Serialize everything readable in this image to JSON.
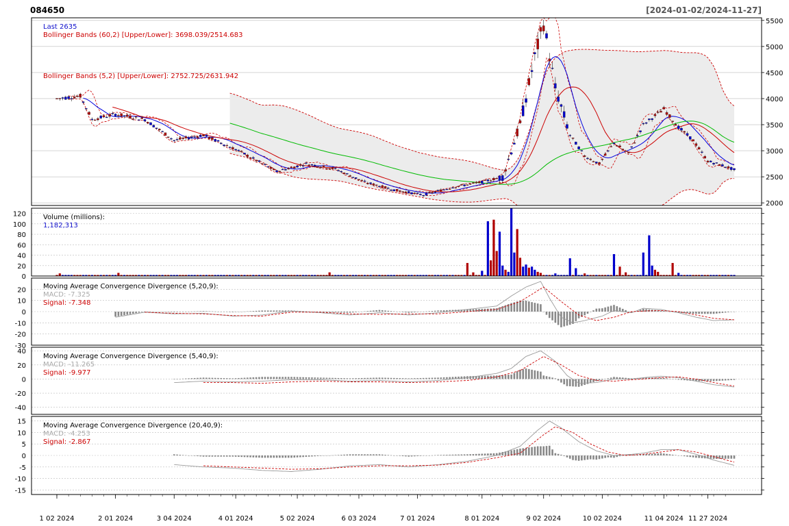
{
  "header": {
    "ticker": "084650",
    "date_range": "[2024-01-02/2024-11-27]"
  },
  "colors": {
    "up": "#0000cc",
    "down": "#b00000",
    "bb_fill": "#ececec",
    "bb_line": "#cc0000",
    "ma_short": "#0000dd",
    "ma_mid": "#cc0000",
    "ma_long": "#00bb00",
    "macd": "#999999",
    "signal": "#cc0000",
    "hist": "#888888",
    "grid": "#bbbbbb"
  },
  "chart_data": [
    {
      "type": "candlestick",
      "panel": "price",
      "legend": {
        "last": "Last 2635",
        "bb60": "Bollinger Bands (60,2) [Upper/Lower]: 3698.039/2514.683",
        "bb5": "Bollinger Bands (5,2) [Upper/Lower]: 2752.725/2631.942"
      },
      "ylim": [
        1950,
        5550
      ],
      "y_ticks": [
        2000,
        2500,
        3000,
        3500,
        4000,
        4500,
        5000,
        5500
      ],
      "x_ticks": [
        "1 02 2024",
        "2 01 2024",
        "3 04 2024",
        "4 01 2024",
        "5 02 2024",
        "6 03 2024",
        "7 01 2024",
        "8 01 2024",
        "9 02 2024",
        "10 02 2024",
        "11 04 2024",
        "11 27 2024"
      ],
      "x_tick_index": [
        0,
        20,
        40,
        61,
        82,
        103,
        123,
        145,
        166,
        186,
        207,
        222
      ],
      "close_keypoints": [
        [
          0,
          4000
        ],
        [
          8,
          4050
        ],
        [
          12,
          3600
        ],
        [
          20,
          3700
        ],
        [
          30,
          3600
        ],
        [
          40,
          3200
        ],
        [
          50,
          3300
        ],
        [
          62,
          3000
        ],
        [
          75,
          2600
        ],
        [
          85,
          2750
        ],
        [
          95,
          2650
        ],
        [
          105,
          2400
        ],
        [
          115,
          2250
        ],
        [
          125,
          2150
        ],
        [
          135,
          2300
        ],
        [
          145,
          2400
        ],
        [
          152,
          2500
        ],
        [
          158,
          3500
        ],
        [
          163,
          4800
        ],
        [
          166,
          5450
        ],
        [
          170,
          4200
        ],
        [
          175,
          3300
        ],
        [
          180,
          2900
        ],
        [
          185,
          2750
        ],
        [
          190,
          3150
        ],
        [
          195,
          2950
        ],
        [
          200,
          3500
        ],
        [
          207,
          3800
        ],
        [
          212,
          3450
        ],
        [
          217,
          3200
        ],
        [
          222,
          2800
        ],
        [
          228,
          2700
        ],
        [
          231,
          2635
        ]
      ],
      "series_names": [
        "BB(60,2) upper",
        "BB(60,2) lower",
        "BB(5,2) upper",
        "BB(5,2) lower",
        "MA short",
        "MA mid",
        "MA long"
      ]
    },
    {
      "type": "bar",
      "panel": "volume",
      "title": "Volume (millions):",
      "last_value": "1,182,313",
      "ylim": [
        0,
        130
      ],
      "y_ticks": [
        0,
        20,
        40,
        60,
        80,
        100,
        120
      ],
      "baseline": 2,
      "spikes": [
        [
          1,
          5
        ],
        [
          21,
          6
        ],
        [
          93,
          7
        ],
        [
          140,
          25
        ],
        [
          142,
          7
        ],
        [
          145,
          10
        ],
        [
          147,
          105
        ],
        [
          148,
          30
        ],
        [
          149,
          108
        ],
        [
          150,
          48
        ],
        [
          151,
          85
        ],
        [
          152,
          20
        ],
        [
          153,
          12
        ],
        [
          154,
          8
        ],
        [
          155,
          135
        ],
        [
          156,
          45
        ],
        [
          157,
          90
        ],
        [
          158,
          35
        ],
        [
          159,
          18
        ],
        [
          160,
          22
        ],
        [
          161,
          16
        ],
        [
          162,
          18
        ],
        [
          163,
          12
        ],
        [
          164,
          8
        ],
        [
          165,
          6
        ],
        [
          170,
          5
        ],
        [
          175,
          34
        ],
        [
          177,
          15
        ],
        [
          180,
          5
        ],
        [
          190,
          42
        ],
        [
          192,
          18
        ],
        [
          194,
          7
        ],
        [
          200,
          45
        ],
        [
          202,
          78
        ],
        [
          203,
          20
        ],
        [
          204,
          12
        ],
        [
          205,
          8
        ],
        [
          210,
          25
        ],
        [
          212,
          6
        ]
      ]
    },
    {
      "type": "line",
      "panel": "macd1",
      "title": "Moving Average Convergence Divergence (5,20,9):",
      "macd_label": "MACD: -7.325",
      "signal_label": "Signal: -7.348",
      "ylim": [
        -30,
        30
      ],
      "y_ticks": [
        20,
        10,
        0,
        -10,
        -20,
        -30
      ],
      "macd": [
        [
          20,
          -5
        ],
        [
          30,
          -0.5
        ],
        [
          40,
          -2
        ],
        [
          50,
          -1.5
        ],
        [
          60,
          -4
        ],
        [
          70,
          -3
        ],
        [
          80,
          0.5
        ],
        [
          90,
          -1
        ],
        [
          100,
          -3
        ],
        [
          110,
          -1
        ],
        [
          120,
          -3
        ],
        [
          130,
          -1
        ],
        [
          140,
          2
        ],
        [
          150,
          5
        ],
        [
          155,
          14
        ],
        [
          160,
          22
        ],
        [
          165,
          27
        ],
        [
          168,
          12
        ],
        [
          172,
          -5
        ],
        [
          176,
          -10
        ],
        [
          180,
          -8
        ],
        [
          186,
          -4
        ],
        [
          190,
          1
        ],
        [
          196,
          -1
        ],
        [
          200,
          3
        ],
        [
          206,
          2
        ],
        [
          212,
          -1
        ],
        [
          218,
          -5
        ],
        [
          224,
          -8
        ],
        [
          231,
          -7.3
        ]
      ],
      "signal": [
        [
          30,
          -0.5
        ],
        [
          40,
          -1.5
        ],
        [
          50,
          -2
        ],
        [
          60,
          -3.5
        ],
        [
          70,
          -4
        ],
        [
          80,
          -0.5
        ],
        [
          90,
          -0.5
        ],
        [
          100,
          -2
        ],
        [
          110,
          -2.5
        ],
        [
          120,
          -2
        ],
        [
          130,
          -2
        ],
        [
          140,
          0
        ],
        [
          150,
          2
        ],
        [
          158,
          9
        ],
        [
          166,
          22
        ],
        [
          172,
          9
        ],
        [
          178,
          -3
        ],
        [
          184,
          -8
        ],
        [
          190,
          -5
        ],
        [
          196,
          0
        ],
        [
          200,
          0.5
        ],
        [
          206,
          1
        ],
        [
          212,
          0
        ],
        [
          218,
          -3
        ],
        [
          224,
          -6
        ],
        [
          231,
          -7.3
        ]
      ]
    },
    {
      "type": "line",
      "panel": "macd2",
      "title": "Moving Average Convergence Divergence (5,40,9):",
      "macd_label": "MACD: -11.265",
      "signal_label": "Signal: -9.977",
      "ylim": [
        -50,
        45
      ],
      "y_ticks": [
        40,
        20,
        0,
        -20,
        -40
      ],
      "macd": [
        [
          40,
          -5
        ],
        [
          50,
          -3
        ],
        [
          60,
          -4
        ],
        [
          70,
          -3
        ],
        [
          80,
          -1
        ],
        [
          90,
          -1
        ],
        [
          100,
          -3
        ],
        [
          110,
          -2
        ],
        [
          120,
          -4
        ],
        [
          130,
          -2
        ],
        [
          140,
          2
        ],
        [
          150,
          8
        ],
        [
          155,
          15
        ],
        [
          160,
          32
        ],
        [
          165,
          40
        ],
        [
          170,
          25
        ],
        [
          174,
          5
        ],
        [
          178,
          -6
        ],
        [
          184,
          -5
        ],
        [
          190,
          0
        ],
        [
          196,
          0
        ],
        [
          200,
          2
        ],
        [
          206,
          4
        ],
        [
          212,
          2
        ],
        [
          218,
          -3
        ],
        [
          224,
          -8
        ],
        [
          231,
          -11.3
        ]
      ],
      "signal": [
        [
          50,
          -5
        ],
        [
          60,
          -5
        ],
        [
          70,
          -6
        ],
        [
          80,
          -4
        ],
        [
          90,
          -3
        ],
        [
          100,
          -4
        ],
        [
          110,
          -4
        ],
        [
          120,
          -5
        ],
        [
          130,
          -4
        ],
        [
          140,
          -2
        ],
        [
          150,
          3
        ],
        [
          158,
          12
        ],
        [
          166,
          32
        ],
        [
          172,
          20
        ],
        [
          178,
          5
        ],
        [
          184,
          -2
        ],
        [
          190,
          -3
        ],
        [
          196,
          -1
        ],
        [
          200,
          0
        ],
        [
          206,
          2
        ],
        [
          212,
          3
        ],
        [
          218,
          0
        ],
        [
          224,
          -5
        ],
        [
          231,
          -10
        ]
      ]
    },
    {
      "type": "line",
      "panel": "macd3",
      "title": "Moving Average Convergence Divergence (20,40,9):",
      "macd_label": "MACD: -4.253",
      "signal_label": "Signal: -2.867",
      "ylim": [
        -17,
        17
      ],
      "y_ticks": [
        15,
        10,
        5,
        0,
        -5,
        -10,
        -15
      ],
      "macd": [
        [
          40,
          -4
        ],
        [
          50,
          -5
        ],
        [
          60,
          -5.5
        ],
        [
          70,
          -6.5
        ],
        [
          80,
          -7
        ],
        [
          90,
          -6
        ],
        [
          100,
          -4.5
        ],
        [
          110,
          -4
        ],
        [
          120,
          -5
        ],
        [
          130,
          -4
        ],
        [
          140,
          -2.5
        ],
        [
          150,
          0
        ],
        [
          158,
          4
        ],
        [
          164,
          11
        ],
        [
          168,
          15
        ],
        [
          172,
          12
        ],
        [
          178,
          6
        ],
        [
          184,
          2
        ],
        [
          190,
          0
        ],
        [
          196,
          0.5
        ],
        [
          200,
          1
        ],
        [
          206,
          2.5
        ],
        [
          212,
          2.5
        ],
        [
          218,
          0.5
        ],
        [
          224,
          -2
        ],
        [
          231,
          -4.3
        ]
      ],
      "signal": [
        [
          50,
          -4.5
        ],
        [
          60,
          -5
        ],
        [
          70,
          -5.5
        ],
        [
          80,
          -6
        ],
        [
          90,
          -5.8
        ],
        [
          100,
          -5
        ],
        [
          110,
          -4.5
        ],
        [
          120,
          -4.5
        ],
        [
          130,
          -4.2
        ],
        [
          140,
          -3
        ],
        [
          150,
          -1
        ],
        [
          158,
          1
        ],
        [
          166,
          9
        ],
        [
          170,
          12.5
        ],
        [
          176,
          10
        ],
        [
          182,
          5
        ],
        [
          188,
          1.5
        ],
        [
          194,
          0
        ],
        [
          200,
          0.5
        ],
        [
          206,
          1.5
        ],
        [
          212,
          2.5
        ],
        [
          218,
          1.5
        ],
        [
          224,
          -0.5
        ],
        [
          231,
          -2.9
        ]
      ]
    }
  ]
}
